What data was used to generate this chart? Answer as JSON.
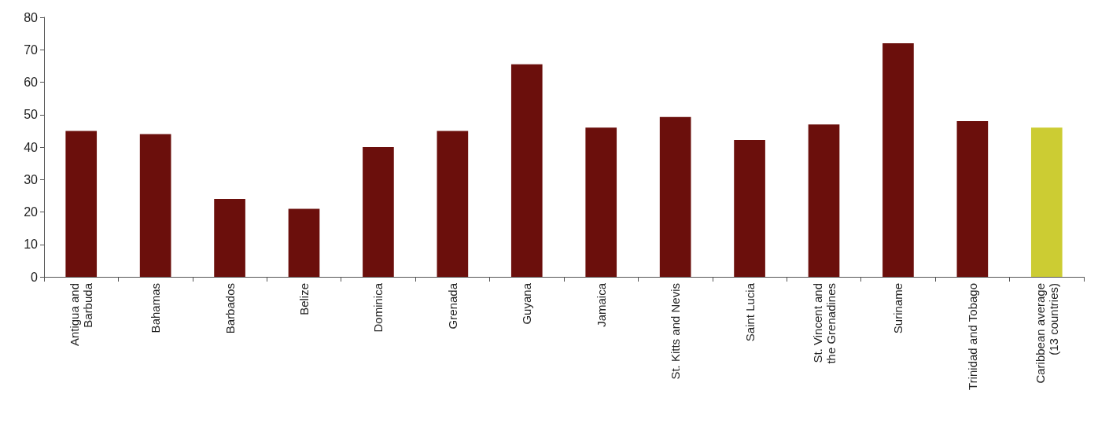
{
  "chart_data": {
    "type": "bar",
    "categories": [
      "Antigua and\nBarbuda",
      "Bahamas",
      "Barbados",
      "Belize",
      "Dominica",
      "Grenada",
      "Guyana",
      "Jamaica",
      "St. Kitts and Nevis",
      "Saint Lucia",
      "St. Vincent and\nthe Grenadines",
      "Suriname",
      "Trinidad and Tobago",
      "Caribbean average\n(13 countries)"
    ],
    "values": [
      45,
      44,
      24,
      21,
      40,
      45,
      65.5,
      46,
      49.3,
      42.2,
      47,
      72,
      48,
      46
    ],
    "colors": [
      "#6b0f0c",
      "#6b0f0c",
      "#6b0f0c",
      "#6b0f0c",
      "#6b0f0c",
      "#6b0f0c",
      "#6b0f0c",
      "#6b0f0c",
      "#6b0f0c",
      "#6b0f0c",
      "#6b0f0c",
      "#6b0f0c",
      "#6b0f0c",
      "#cccc33"
    ],
    "ylim": [
      0,
      80
    ],
    "yticks": [
      0,
      10,
      20,
      30,
      40,
      50,
      60,
      70,
      80
    ],
    "grid": false
  }
}
